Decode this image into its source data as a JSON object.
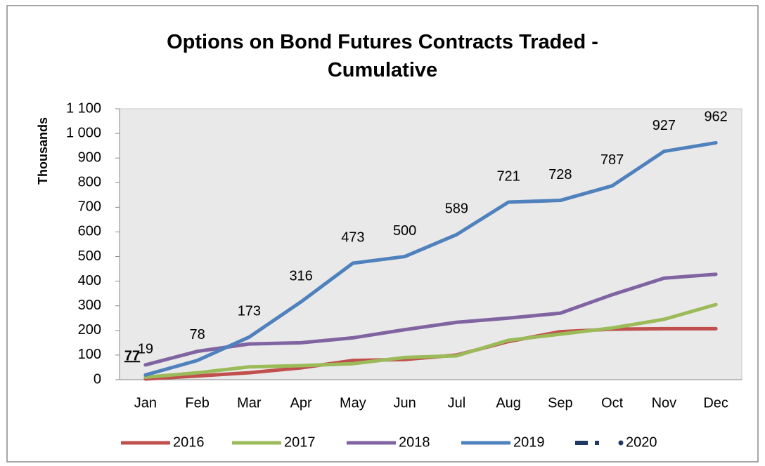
{
  "chart_data": {
    "type": "line",
    "title": "Options on Bond Futures Contracts Traded - Cumulative",
    "y_label": "Thousands",
    "categories": [
      "Jan",
      "Feb",
      "Mar",
      "Apr",
      "May",
      "Jun",
      "Jul",
      "Aug",
      "Sep",
      "Oct",
      "Nov",
      "Dec"
    ],
    "series": [
      {
        "name": "2016",
        "color": "#c0504d",
        "values": [
          3,
          15,
          28,
          48,
          78,
          82,
          100,
          155,
          195,
          205,
          207,
          207
        ]
      },
      {
        "name": "2017",
        "color": "#9bbb59",
        "values": [
          10,
          28,
          52,
          57,
          65,
          90,
          97,
          160,
          185,
          210,
          245,
          305
        ]
      },
      {
        "name": "2018",
        "color": "#8064a2",
        "values": [
          60,
          115,
          145,
          150,
          170,
          203,
          233,
          250,
          270,
          345,
          412,
          428
        ]
      },
      {
        "name": "2019",
        "color": "#4f81bd",
        "values": [
          19,
          78,
          173,
          316,
          473,
          500,
          589,
          721,
          728,
          787,
          927,
          962
        ],
        "data_labels": true
      },
      {
        "name": "2020",
        "color": "#1f3864",
        "dashed": true,
        "values": [
          77,
          null,
          null,
          null,
          null,
          null,
          null,
          null,
          null,
          null,
          null,
          null
        ],
        "data_labels": true
      }
    ],
    "ylim": [
      0,
      1100
    ],
    "yticks": [
      0,
      100,
      200,
      300,
      400,
      500,
      600,
      700,
      800,
      900,
      {
        "value": 1000,
        "label": "1 000"
      },
      {
        "value": 1100,
        "label": "1 100"
      }
    ],
    "grid": false,
    "legend": "bottom"
  }
}
